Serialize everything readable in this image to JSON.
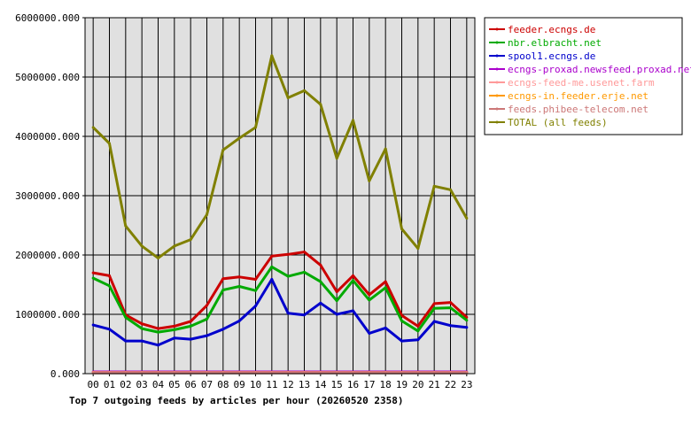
{
  "chart_data": {
    "type": "line",
    "title": "Top 7 outgoing feeds by articles per hour (20260520 2358)",
    "xlabel": "",
    "ylabel": "",
    "categories": [
      "00",
      "01",
      "02",
      "03",
      "04",
      "05",
      "06",
      "07",
      "08",
      "09",
      "10",
      "11",
      "12",
      "13",
      "14",
      "15",
      "16",
      "17",
      "18",
      "19",
      "20",
      "21",
      "22",
      "23"
    ],
    "ylim": [
      0,
      6000000
    ],
    "yticks": [
      "0.000",
      "1000000.000",
      "2000000.000",
      "3000000.000",
      "4000000.000",
      "5000000.000",
      "6000000.000"
    ],
    "grid": true,
    "legend_position": "top-right",
    "series": [
      {
        "name": "feeder.ecngs.de",
        "color": "#cc0000",
        "values": [
          1700000,
          1650000,
          990000,
          840000,
          760000,
          800000,
          880000,
          1150000,
          1600000,
          1630000,
          1590000,
          1980000,
          2010000,
          2050000,
          1830000,
          1380000,
          1650000,
          1330000,
          1550000,
          980000,
          800000,
          1180000,
          1200000,
          950000
        ]
      },
      {
        "name": "nbr.elbracht.net",
        "color": "#00aa00",
        "values": [
          1610000,
          1480000,
          950000,
          760000,
          700000,
          740000,
          800000,
          920000,
          1410000,
          1470000,
          1400000,
          1800000,
          1640000,
          1710000,
          1550000,
          1230000,
          1570000,
          1240000,
          1450000,
          890000,
          720000,
          1100000,
          1110000,
          900000
        ]
      },
      {
        "name": "spool1.ecngs.de",
        "color": "#0000cc",
        "values": [
          820000,
          750000,
          550000,
          550000,
          480000,
          600000,
          580000,
          640000,
          750000,
          890000,
          1140000,
          1590000,
          1020000,
          990000,
          1190000,
          1000000,
          1060000,
          680000,
          770000,
          550000,
          570000,
          880000,
          810000,
          780000
        ]
      },
      {
        "name": "ecngs-proxad.newsfeed.proxad.net",
        "color": "#aa00cc",
        "values": [
          30000,
          30000,
          30000,
          30000,
          30000,
          30000,
          30000,
          30000,
          30000,
          30000,
          30000,
          30000,
          30000,
          30000,
          30000,
          30000,
          30000,
          30000,
          30000,
          30000,
          30000,
          30000,
          30000,
          30000
        ]
      },
      {
        "name": "ecngs-feed-me.usenet.farm",
        "color": "#ff9999",
        "values": [
          20000,
          20000,
          20000,
          20000,
          20000,
          20000,
          20000,
          20000,
          20000,
          20000,
          20000,
          20000,
          20000,
          20000,
          20000,
          20000,
          20000,
          20000,
          20000,
          20000,
          20000,
          20000,
          20000,
          20000
        ]
      },
      {
        "name": "ecngs-in.feeder.erje.net",
        "color": "#ff9900",
        "values": [
          15000,
          15000,
          15000,
          15000,
          15000,
          15000,
          15000,
          15000,
          15000,
          15000,
          15000,
          15000,
          15000,
          15000,
          15000,
          15000,
          15000,
          15000,
          15000,
          15000,
          15000,
          15000,
          15000,
          15000
        ]
      },
      {
        "name": "feeds.phibee-telecom.net",
        "color": "#cc7777",
        "values": [
          10000,
          10000,
          10000,
          10000,
          10000,
          10000,
          10000,
          10000,
          10000,
          10000,
          10000,
          10000,
          10000,
          10000,
          10000,
          10000,
          10000,
          10000,
          10000,
          10000,
          10000,
          10000,
          10000,
          10000
        ]
      },
      {
        "name": "TOTAL (all feeds)",
        "color": "#808000",
        "values": [
          4150000,
          3880000,
          2490000,
          2150000,
          1950000,
          2150000,
          2260000,
          2680000,
          3770000,
          3970000,
          4150000,
          5360000,
          4650000,
          4770000,
          4540000,
          3630000,
          4270000,
          3250000,
          3790000,
          2440000,
          2110000,
          3160000,
          3100000,
          2620000
        ]
      }
    ]
  }
}
